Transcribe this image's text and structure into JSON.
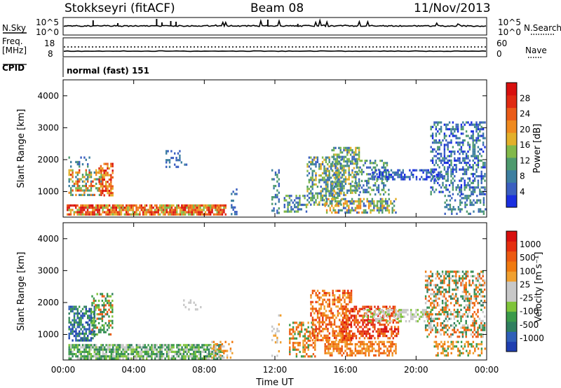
{
  "header": {
    "title": "Stokkseyri (fitACF)",
    "beam": "Beam 08",
    "date": "11/Nov/2013",
    "mode": "normal (fast) 151"
  },
  "side_labels": {
    "nsky": "N.Sky",
    "freq": "Freq.",
    "freq_unit": "[MHz]",
    "cpid": "CPID",
    "nsearch": "N.Search",
    "nave": "Nave"
  },
  "chart_data": [
    {
      "type": "line",
      "name": "nsky-panel",
      "series": [
        {
          "name": "N.Sky"
        }
      ],
      "left_ticks": [
        "10^5",
        "10^0"
      ],
      "right_ticks": [
        "10^5",
        "10^0"
      ],
      "legend_right": "N.Search"
    },
    {
      "type": "line",
      "name": "freq-nave-panel",
      "series": [
        {
          "name": "Freq."
        },
        {
          "name": "Nave"
        }
      ],
      "left_ticks": [
        "18",
        "8"
      ],
      "right_ticks": [
        "60",
        "0"
      ],
      "legend_right": "Nave"
    },
    {
      "type": "heatmap",
      "name": "power-panel",
      "ylabel": "Slant Range [km]",
      "yticks": [
        "1000",
        "2000",
        "3000",
        "4000"
      ],
      "ylim": [
        200,
        4500
      ],
      "xlim": [
        0,
        24
      ],
      "colorbar": {
        "label": "Power [dB]",
        "ticks": [
          "4",
          "8",
          "12",
          "16",
          "20",
          "24",
          "28"
        ],
        "colors": [
          "#1a2fe0",
          "#3b5fc0",
          "#3d7fa0",
          "#4e9a6e",
          "#82b94a",
          "#e3b02a",
          "#f08a1f",
          "#ea5b18",
          "#e02a12",
          "#d8100e"
        ]
      }
    },
    {
      "type": "heatmap",
      "name": "velocity-panel",
      "ylabel": "Slant Range [km]",
      "yticks": [
        "1000",
        "2000",
        "3000",
        "4000"
      ],
      "ylim": [
        200,
        4500
      ],
      "xlim": [
        0,
        24
      ],
      "xlabel": "Time UT",
      "xticks": [
        "00:00",
        "04:00",
        "08:00",
        "12:00",
        "16:00",
        "20:00",
        "00:00"
      ],
      "colorbar": {
        "label": "Velocity [m s⁻¹]",
        "ticks": [
          "1000",
          "500",
          "100",
          "25",
          "-25",
          "-100",
          "-500",
          "-1000"
        ],
        "colors": [
          "#1f3fb0",
          "#2f5fb8",
          "#2f7f5f",
          "#3a9a4a",
          "#7fc43a",
          "#c8c8c8",
          "#c8c8c8",
          "#f0a030",
          "#f07a10",
          "#ec5a12",
          "#e52f0f",
          "#d8100e"
        ]
      }
    }
  ]
}
